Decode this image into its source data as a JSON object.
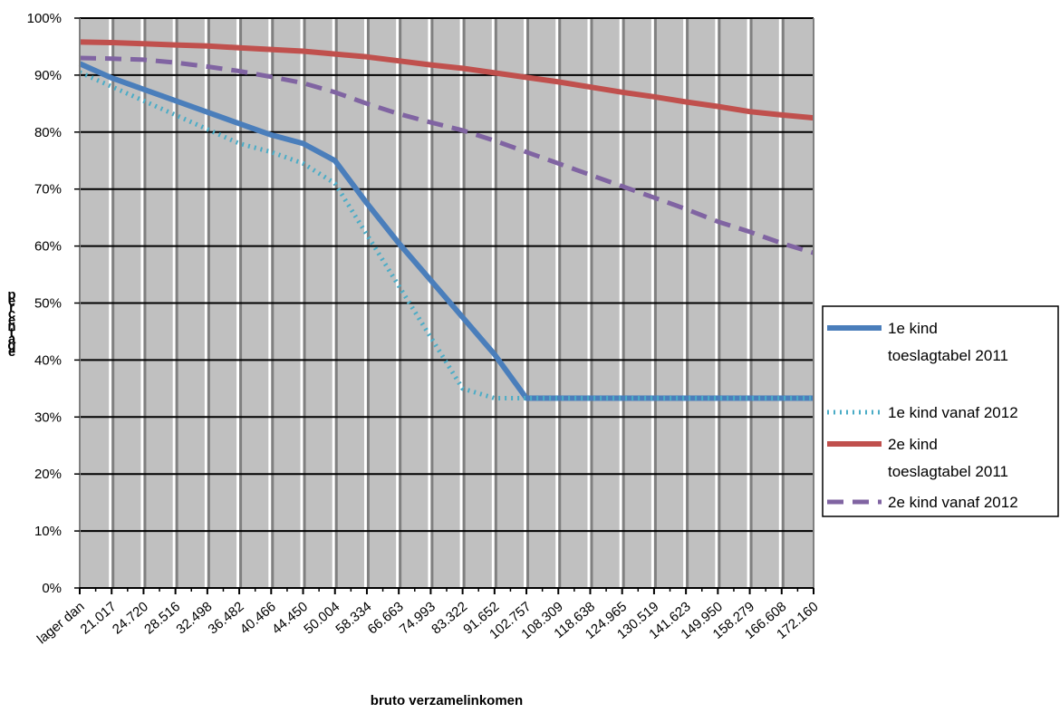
{
  "chart_data": {
    "type": "line",
    "xlabel": "bruto verzamelinkomen",
    "ylabel": "percentage",
    "ylim": [
      0,
      1
    ],
    "y_ticks": [
      "0%",
      "10%",
      "20%",
      "30%",
      "40%",
      "50%",
      "60%",
      "70%",
      "80%",
      "90%",
      "100%"
    ],
    "grid": true,
    "legend_position": "right",
    "categories": [
      "lager dan",
      "21.017",
      "24.720",
      "28.516",
      "32.498",
      "36.482",
      "40.466",
      "44.450",
      "50.004",
      "58.334",
      "66.663",
      "74.993",
      "83.322",
      "91.652",
      "102.757",
      "108.309",
      "118.638",
      "124.965",
      "130.519",
      "141.623",
      "149.950",
      "158.279",
      "166.608",
      "172.160"
    ],
    "label_positions": [
      0,
      1,
      2,
      3,
      4,
      5,
      6,
      7,
      8,
      9,
      10,
      11,
      12,
      13,
      14,
      15,
      16,
      17,
      18,
      19,
      20,
      21,
      22,
      23
    ],
    "series": [
      {
        "name": "1e kind toeslagtabel 2011",
        "color": "#4a7ebb",
        "style": "solid",
        "x": [
          0,
          1,
          2,
          3,
          4,
          5,
          6,
          7,
          8,
          9,
          10,
          11,
          12,
          13,
          14,
          15,
          16,
          17,
          18,
          19,
          20,
          21,
          22,
          23
        ],
        "values": [
          0.92,
          0.895,
          0.875,
          0.855,
          0.835,
          0.815,
          0.795,
          0.78,
          0.75,
          0.675,
          0.605,
          0.54,
          0.475,
          0.41,
          0.333,
          0.333,
          0.333,
          0.333,
          0.333,
          0.333,
          0.333,
          0.333,
          0.333,
          0.333
        ]
      },
      {
        "name": "1e kind vanaf 2012",
        "color": "#4bacc6",
        "style": "dotted",
        "x": [
          0,
          1,
          2,
          3,
          4,
          5,
          6,
          7,
          8,
          9,
          10,
          11,
          12,
          13,
          14,
          15,
          16,
          17,
          18,
          19,
          20,
          21,
          22,
          23
        ],
        "values": [
          0.905,
          0.88,
          0.855,
          0.83,
          0.805,
          0.78,
          0.765,
          0.745,
          0.71,
          0.62,
          0.53,
          0.44,
          0.35,
          0.333,
          0.333,
          0.333,
          0.333,
          0.333,
          0.333,
          0.333,
          0.333,
          0.333,
          0.333,
          0.333
        ]
      },
      {
        "name": "2e kind toeslagtabel 2011",
        "color": "#c0504d",
        "style": "solid",
        "x": [
          0,
          1,
          2,
          3,
          4,
          5,
          6,
          7,
          8,
          9,
          10,
          11,
          12,
          13,
          14,
          15,
          16,
          17,
          18,
          19,
          20,
          21,
          22,
          23
        ],
        "values": [
          0.958,
          0.957,
          0.955,
          0.953,
          0.951,
          0.948,
          0.945,
          0.942,
          0.937,
          0.932,
          0.925,
          0.918,
          0.912,
          0.904,
          0.896,
          0.888,
          0.879,
          0.87,
          0.862,
          0.853,
          0.845,
          0.836,
          0.83,
          0.825
        ]
      },
      {
        "name": "2e kind vanaf 2012",
        "color": "#8064a2",
        "style": "dashed",
        "x": [
          0,
          1,
          2,
          3,
          4,
          5,
          6,
          7,
          8,
          9,
          10,
          11,
          12,
          13,
          14,
          15,
          16,
          17,
          18,
          19,
          20,
          21,
          22,
          23
        ],
        "values": [
          0.93,
          0.929,
          0.927,
          0.922,
          0.915,
          0.907,
          0.897,
          0.886,
          0.87,
          0.85,
          0.832,
          0.817,
          0.803,
          0.785,
          0.765,
          0.745,
          0.725,
          0.705,
          0.685,
          0.665,
          0.643,
          0.625,
          0.605,
          0.588
        ]
      }
    ]
  }
}
